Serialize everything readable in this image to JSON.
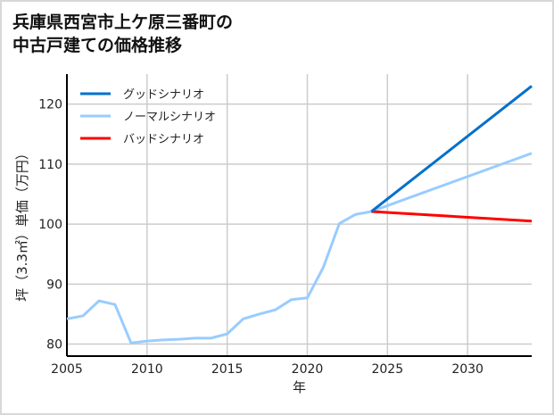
{
  "title_line1": "兵庫県西宮市上ケ原三番町の",
  "title_line2": "中古戸建ての価格推移",
  "chart_data": {
    "type": "line",
    "title": "兵庫県西宮市上ケ原三番町の中古戸建ての価格推移",
    "xlabel": "年",
    "ylabel": "坪（3.3㎡）単価（万円）",
    "xlim": [
      2005,
      2034
    ],
    "ylim": [
      78,
      125
    ],
    "xticks": [
      2005,
      2010,
      2015,
      2020,
      2025,
      2030
    ],
    "yticks": [
      80,
      90,
      100,
      110,
      120
    ],
    "grid": true,
    "legend_position": "top-left",
    "series": [
      {
        "name": "グッドシナリオ",
        "color": "#0070cc",
        "x": [
          2024,
          2034
        ],
        "y": [
          102.1,
          123.0
        ]
      },
      {
        "name": "ノーマルシナリオ",
        "color": "#99ccff",
        "x": [
          2005,
          2006,
          2007,
          2008,
          2009,
          2010,
          2011,
          2012,
          2013,
          2014,
          2015,
          2016,
          2017,
          2018,
          2019,
          2020,
          2021,
          2022,
          2023,
          2024,
          2034
        ],
        "y": [
          84.2,
          84.7,
          87.2,
          86.6,
          80.2,
          80.5,
          80.7,
          80.8,
          81.0,
          81.0,
          81.7,
          84.2,
          85.0,
          85.7,
          87.4,
          87.7,
          92.8,
          100.1,
          101.6,
          102.1,
          111.8
        ]
      },
      {
        "name": "バッドシナリオ",
        "color": "#ff0000",
        "x": [
          2024,
          2034
        ],
        "y": [
          102.1,
          100.5
        ]
      }
    ]
  }
}
